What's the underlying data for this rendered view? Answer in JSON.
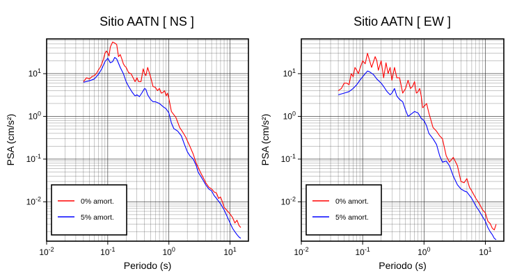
{
  "chart_data": [
    {
      "type": "line",
      "title": "Sitio AATN [ NS ]",
      "xlabel": "Periodo (s)",
      "ylabel": "PSA (cm/s²)",
      "xscale": "log",
      "yscale": "log",
      "xlim": [
        0.01,
        20
      ],
      "ylim": [
        0.0012,
        65
      ],
      "grid": true,
      "legend_position": "bottom-left",
      "x_ticks": [
        {
          "base": "10",
          "exp": "-2"
        },
        {
          "base": "10",
          "exp": "-1"
        },
        {
          "base": "10",
          "exp": "0"
        },
        {
          "base": "10",
          "exp": "1"
        }
      ],
      "y_ticks": [
        {
          "base": "10",
          "exp": "-2"
        },
        {
          "base": "10",
          "exp": "-1"
        },
        {
          "base": "10",
          "exp": "0"
        },
        {
          "base": "10",
          "exp": "1"
        }
      ],
      "series": [
        {
          "name": "0% amort.",
          "color": "#ff0000",
          "x": [
            0.04,
            0.045,
            0.05,
            0.055,
            0.06,
            0.065,
            0.07,
            0.075,
            0.08,
            0.085,
            0.09,
            0.095,
            0.1,
            0.105,
            0.11,
            0.12,
            0.13,
            0.14,
            0.15,
            0.16,
            0.17,
            0.18,
            0.19,
            0.2,
            0.22,
            0.24,
            0.26,
            0.28,
            0.3,
            0.32,
            0.35,
            0.38,
            0.4,
            0.42,
            0.45,
            0.5,
            0.55,
            0.6,
            0.65,
            0.7,
            0.75,
            0.8,
            0.85,
            0.9,
            0.95,
            1.0,
            1.1,
            1.2,
            1.3,
            1.4,
            1.5,
            1.7,
            1.9,
            2.0,
            2.2,
            2.5,
            2.8,
            3.0,
            3.3,
            3.6,
            4.0,
            4.5,
            5.0,
            5.5,
            6.0,
            6.5,
            7.0,
            7.5,
            8.0,
            9.0,
            10.0,
            11.0,
            12.0,
            13.0,
            14.0,
            15.0
          ],
          "values": [
            6.5,
            8.0,
            7.5,
            8.5,
            9.0,
            10.0,
            12.0,
            14.0,
            17.0,
            22.0,
            30.0,
            34.0,
            30.0,
            26.0,
            42.0,
            55.0,
            52.0,
            48.0,
            25.0,
            28.0,
            22.0,
            17.0,
            15.0,
            14.0,
            10.5,
            10.0,
            8.0,
            6.5,
            8.0,
            6.5,
            6.5,
            13.0,
            10.0,
            9.0,
            14.0,
            8.5,
            5.0,
            4.8,
            4.0,
            4.5,
            3.5,
            3.6,
            4.0,
            3.0,
            3.5,
            2.6,
            1.3,
            1.1,
            0.95,
            0.72,
            0.55,
            0.42,
            0.32,
            0.27,
            0.2,
            0.13,
            0.08,
            0.065,
            0.048,
            0.038,
            0.028,
            0.022,
            0.02,
            0.017,
            0.016,
            0.012,
            0.013,
            0.01,
            0.0075,
            0.0062,
            0.0052,
            0.0043,
            0.0032,
            0.0037,
            0.0028,
            0.0025
          ]
        },
        {
          "name": "5% amort.",
          "color": "#0000ff",
          "x": [
            0.04,
            0.05,
            0.06,
            0.07,
            0.08,
            0.09,
            0.1,
            0.11,
            0.12,
            0.13,
            0.14,
            0.15,
            0.16,
            0.18,
            0.2,
            0.22,
            0.25,
            0.28,
            0.3,
            0.33,
            0.36,
            0.4,
            0.42,
            0.45,
            0.5,
            0.55,
            0.6,
            0.7,
            0.8,
            0.9,
            1.0,
            1.1,
            1.2,
            1.4,
            1.6,
            1.8,
            2.0,
            2.2,
            2.5,
            2.8,
            3.0,
            3.5,
            4.0,
            4.5,
            5.0,
            5.5,
            6.0,
            7.0,
            8.0,
            9.0,
            10.0,
            11.0,
            12.0,
            13.0,
            14.0,
            15.0
          ],
          "values": [
            6.3,
            6.8,
            7.5,
            9.5,
            13.0,
            19.0,
            23.0,
            18.0,
            19.0,
            24.0,
            22.0,
            17.5,
            14.0,
            10.0,
            6.5,
            5.0,
            3.7,
            3.0,
            3.2,
            2.9,
            3.5,
            4.5,
            4.3,
            3.2,
            2.5,
            2.2,
            2.2,
            2.0,
            1.7,
            1.5,
            1.2,
            0.7,
            0.52,
            0.45,
            0.35,
            0.22,
            0.15,
            0.12,
            0.1,
            0.07,
            0.05,
            0.035,
            0.025,
            0.02,
            0.018,
            0.014,
            0.012,
            0.009,
            0.0065,
            0.0045,
            0.0032,
            0.0024,
            0.002,
            0.0017,
            0.0015,
            0.0014
          ]
        }
      ]
    },
    {
      "type": "line",
      "title": "Sitio AATN [ EW ]",
      "xlabel": "Periodo (s)",
      "ylabel": "PSA (cm/s²)",
      "xscale": "log",
      "yscale": "log",
      "xlim": [
        0.01,
        20
      ],
      "ylim": [
        0.0012,
        65
      ],
      "grid": true,
      "legend_position": "bottom-left",
      "x_ticks": [
        {
          "base": "10",
          "exp": "-2"
        },
        {
          "base": "10",
          "exp": "-1"
        },
        {
          "base": "10",
          "exp": "0"
        },
        {
          "base": "10",
          "exp": "1"
        }
      ],
      "y_ticks": [
        {
          "base": "10",
          "exp": "-2"
        },
        {
          "base": "10",
          "exp": "-1"
        },
        {
          "base": "10",
          "exp": "0"
        },
        {
          "base": "10",
          "exp": "1"
        }
      ],
      "series": [
        {
          "name": "0% amort.",
          "color": "#ff0000",
          "x": [
            0.04,
            0.045,
            0.05,
            0.055,
            0.06,
            0.065,
            0.07,
            0.075,
            0.08,
            0.085,
            0.09,
            0.1,
            0.11,
            0.12,
            0.13,
            0.14,
            0.15,
            0.16,
            0.17,
            0.18,
            0.2,
            0.22,
            0.24,
            0.26,
            0.28,
            0.3,
            0.33,
            0.36,
            0.4,
            0.45,
            0.5,
            0.55,
            0.6,
            0.65,
            0.7,
            0.75,
            0.8,
            0.85,
            0.9,
            0.95,
            1.0,
            1.1,
            1.2,
            1.3,
            1.4,
            1.6,
            1.8,
            2.0,
            2.3,
            2.6,
            3.0,
            3.5,
            4.0,
            4.5,
            5.0,
            5.5,
            6.0,
            7.0,
            8.0,
            9.0,
            10.0,
            11.0,
            12.0,
            13.0,
            14.0,
            15.0
          ],
          "values": [
            4.0,
            4.5,
            6.0,
            6.0,
            5.5,
            10.0,
            8.5,
            14.0,
            12.0,
            10.0,
            13.0,
            20.0,
            17.0,
            30.0,
            20.0,
            14.0,
            19.0,
            25.0,
            20.0,
            12.0,
            20.0,
            8.0,
            18.0,
            10.0,
            14.0,
            7.0,
            14.0,
            8.0,
            8.0,
            3.5,
            4.5,
            7.0,
            4.5,
            5.0,
            6.5,
            3.5,
            3.8,
            4.5,
            3.0,
            1.6,
            1.7,
            2.0,
            1.2,
            0.8,
            0.55,
            0.45,
            0.35,
            0.3,
            0.12,
            0.085,
            0.11,
            0.07,
            0.03,
            0.028,
            0.035,
            0.022,
            0.018,
            0.012,
            0.009,
            0.0065,
            0.0055,
            0.0035,
            0.0031,
            0.0024,
            0.0022,
            0.003
          ]
        },
        {
          "name": "5% amort.",
          "color": "#0000ff",
          "x": [
            0.04,
            0.05,
            0.06,
            0.07,
            0.08,
            0.09,
            0.1,
            0.11,
            0.12,
            0.13,
            0.15,
            0.17,
            0.2,
            0.22,
            0.25,
            0.28,
            0.3,
            0.33,
            0.36,
            0.4,
            0.45,
            0.5,
            0.55,
            0.6,
            0.7,
            0.8,
            0.9,
            1.0,
            1.1,
            1.2,
            1.4,
            1.6,
            1.8,
            2.0,
            2.3,
            2.6,
            3.0,
            3.5,
            4.0,
            4.5,
            5.0,
            6.0,
            7.0,
            8.0,
            9.0,
            10.0,
            11.0,
            12.0,
            13.0,
            14.0,
            15.0
          ],
          "values": [
            3.2,
            3.5,
            3.8,
            4.5,
            5.5,
            7.0,
            8.5,
            10.0,
            11.5,
            11.0,
            9.5,
            7.5,
            6.0,
            5.0,
            3.8,
            3.2,
            3.5,
            4.5,
            3.0,
            2.5,
            2.2,
            1.4,
            1.0,
            1.1,
            1.3,
            1.2,
            0.9,
            0.8,
            0.6,
            0.4,
            0.3,
            0.22,
            0.12,
            0.085,
            0.09,
            0.07,
            0.04,
            0.025,
            0.02,
            0.018,
            0.017,
            0.012,
            0.008,
            0.006,
            0.0045,
            0.0035,
            0.0025,
            0.002,
            0.0017,
            0.0014,
            0.0013
          ]
        }
      ]
    }
  ]
}
